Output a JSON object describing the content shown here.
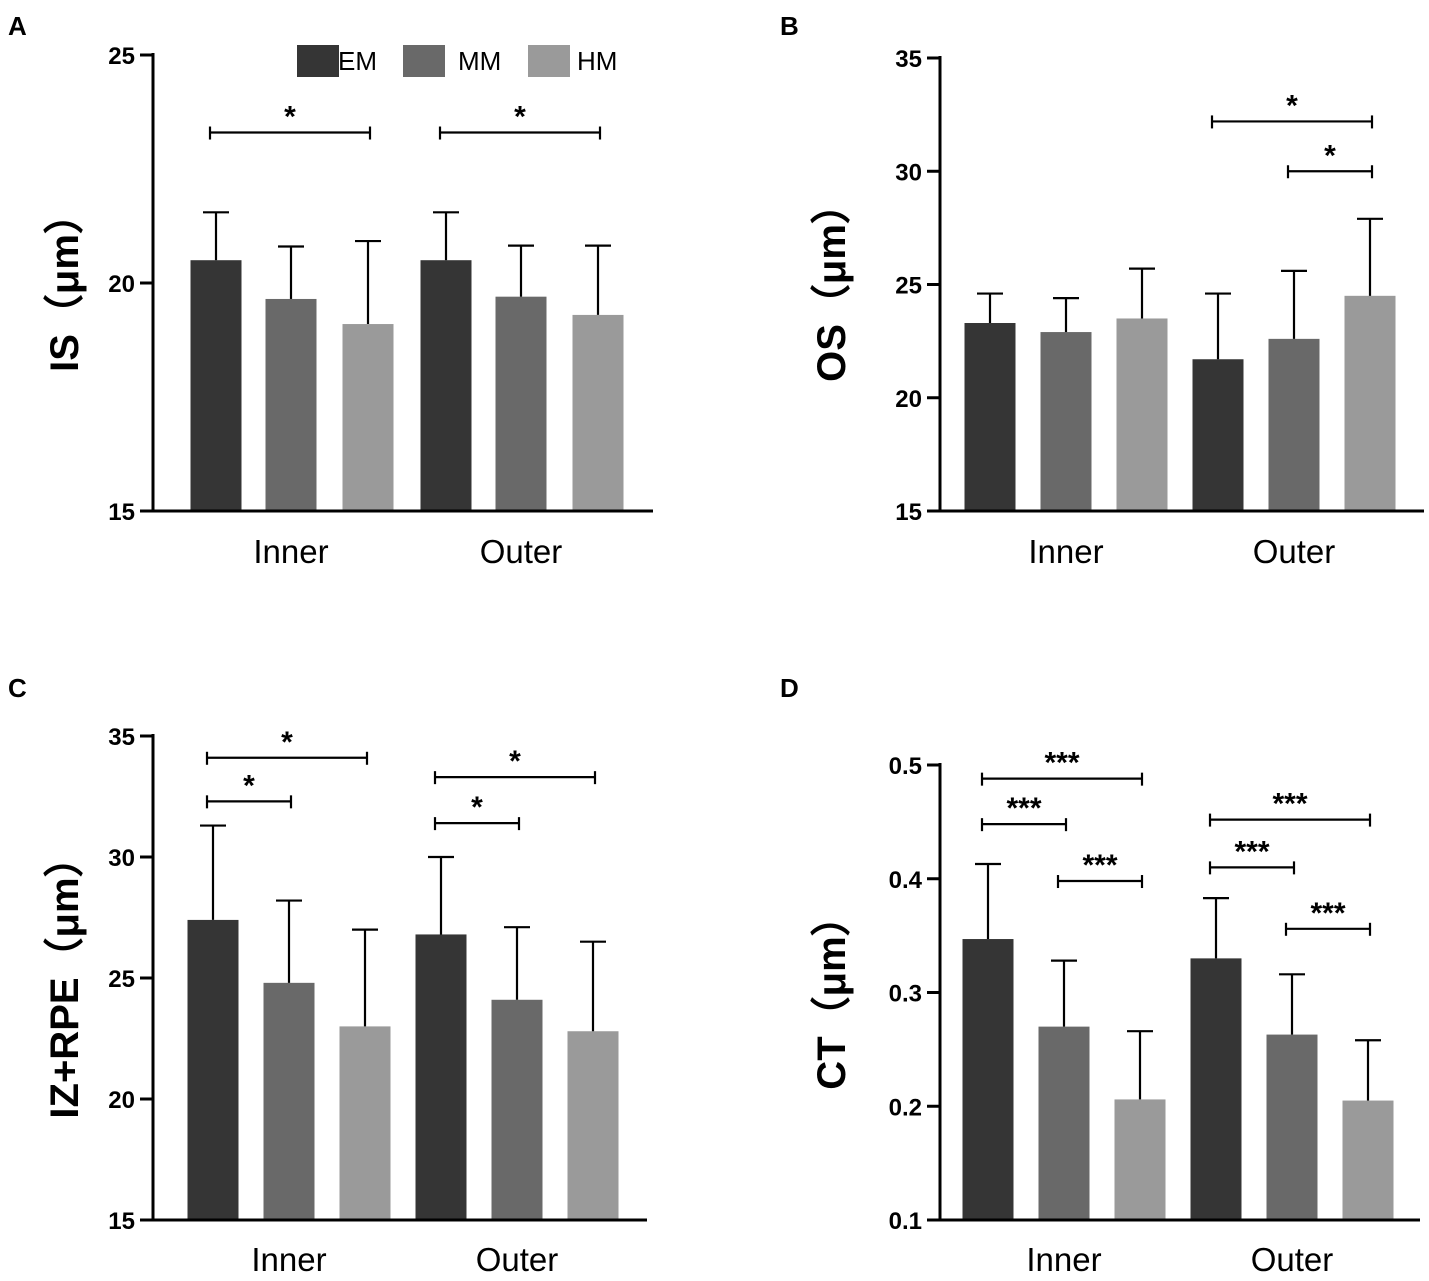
{
  "legend": {
    "entries": [
      {
        "name": "EM",
        "color": "#353535"
      },
      {
        "name": "MM",
        "color": "#696969"
      },
      {
        "name": "HM",
        "color": "#9a9a9a"
      }
    ]
  },
  "chart_data": [
    {
      "panel": "A",
      "type": "bar",
      "categories": [
        "Inner",
        "Outer"
      ],
      "ylabel": "IS（μm）",
      "ylim": [
        15,
        25
      ],
      "yticks": [
        15,
        20,
        25
      ],
      "yticks_labels": [
        "15",
        "20",
        "25"
      ],
      "series": [
        {
          "name": "EM",
          "values": [
            20.5,
            20.5
          ],
          "errors": [
            1.05,
            1.05
          ]
        },
        {
          "name": "MM",
          "values": [
            19.65,
            19.7
          ],
          "errors": [
            1.15,
            1.12
          ]
        },
        {
          "name": "HM",
          "values": [
            19.1,
            19.3
          ],
          "errors": [
            1.82,
            1.52
          ]
        }
      ],
      "significance": [
        {
          "category": "Inner",
          "from": "EM",
          "to": "HM",
          "label": "*",
          "y": 23.3
        },
        {
          "category": "Outer",
          "from": "EM",
          "to": "HM",
          "label": "*",
          "y": 23.3
        }
      ]
    },
    {
      "panel": "B",
      "type": "bar",
      "categories": [
        "Inner",
        "Outer"
      ],
      "ylabel": "OS（μm）",
      "ylim": [
        15,
        35
      ],
      "yticks": [
        15,
        20,
        25,
        30,
        35
      ],
      "yticks_labels": [
        "15",
        "20",
        "25",
        "30",
        "35"
      ],
      "series": [
        {
          "name": "EM",
          "values": [
            23.3,
            21.7
          ],
          "errors": [
            1.3,
            2.9
          ]
        },
        {
          "name": "MM",
          "values": [
            22.9,
            22.6
          ],
          "errors": [
            1.5,
            3.0
          ]
        },
        {
          "name": "HM",
          "values": [
            23.5,
            24.5
          ],
          "errors": [
            2.2,
            3.4
          ]
        }
      ],
      "significance": [
        {
          "category": "Outer",
          "from": "EM",
          "to": "HM",
          "label": "*",
          "y": 32.2
        },
        {
          "category": "Outer",
          "from": "MM",
          "to": "HM",
          "label": "*",
          "y": 30.0
        }
      ]
    },
    {
      "panel": "C",
      "type": "bar",
      "categories": [
        "Inner",
        "Outer"
      ],
      "ylabel": "IZ+RPE（μm）",
      "ylim": [
        15,
        35
      ],
      "yticks": [
        15,
        20,
        25,
        30,
        35
      ],
      "yticks_labels": [
        "15",
        "20",
        "25",
        "30",
        "35"
      ],
      "series": [
        {
          "name": "EM",
          "values": [
            27.4,
            26.8
          ],
          "errors": [
            3.9,
            3.2
          ]
        },
        {
          "name": "MM",
          "values": [
            24.8,
            24.1
          ],
          "errors": [
            3.4,
            3.0
          ]
        },
        {
          "name": "HM",
          "values": [
            23.0,
            22.8
          ],
          "errors": [
            4.0,
            3.7
          ]
        }
      ],
      "significance": [
        {
          "category": "Inner",
          "from": "EM",
          "to": "HM",
          "label": "*",
          "y": 34.1
        },
        {
          "category": "Inner",
          "from": "EM",
          "to": "MM",
          "label": "*",
          "y": 32.3
        },
        {
          "category": "Outer",
          "from": "EM",
          "to": "HM",
          "label": "*",
          "y": 33.3
        },
        {
          "category": "Outer",
          "from": "EM",
          "to": "MM",
          "label": "*",
          "y": 31.4
        }
      ]
    },
    {
      "panel": "D",
      "type": "bar",
      "categories": [
        "Inner",
        "Outer"
      ],
      "ylabel": "CT（μm）",
      "ylim": [
        0.1,
        0.5
      ],
      "yticks": [
        0.1,
        0.2,
        0.3,
        0.4,
        0.5
      ],
      "yticks_labels": [
        "0.1",
        "0.2",
        "0.3",
        "0.4",
        "0.5"
      ],
      "series": [
        {
          "name": "EM",
          "values": [
            0.347,
            0.33
          ],
          "errors": [
            0.066,
            0.053
          ]
        },
        {
          "name": "MM",
          "values": [
            0.27,
            0.263
          ],
          "errors": [
            0.058,
            0.053
          ]
        },
        {
          "name": "HM",
          "values": [
            0.206,
            0.205
          ],
          "errors": [
            0.06,
            0.053
          ]
        }
      ],
      "significance": [
        {
          "category": "Inner",
          "from": "EM",
          "to": "HM",
          "label": "***",
          "y": 0.488
        },
        {
          "category": "Inner",
          "from": "EM",
          "to": "MM",
          "label": "***",
          "y": 0.448
        },
        {
          "category": "Inner",
          "from": "MM",
          "to": "HM",
          "label": "***",
          "y": 0.398
        },
        {
          "category": "Outer",
          "from": "EM",
          "to": "HM",
          "label": "***",
          "y": 0.452
        },
        {
          "category": "Outer",
          "from": "EM",
          "to": "MM",
          "label": "***",
          "y": 0.41
        },
        {
          "category": "Outer",
          "from": "MM",
          "to": "HM",
          "label": "***",
          "y": 0.356
        }
      ]
    }
  ]
}
